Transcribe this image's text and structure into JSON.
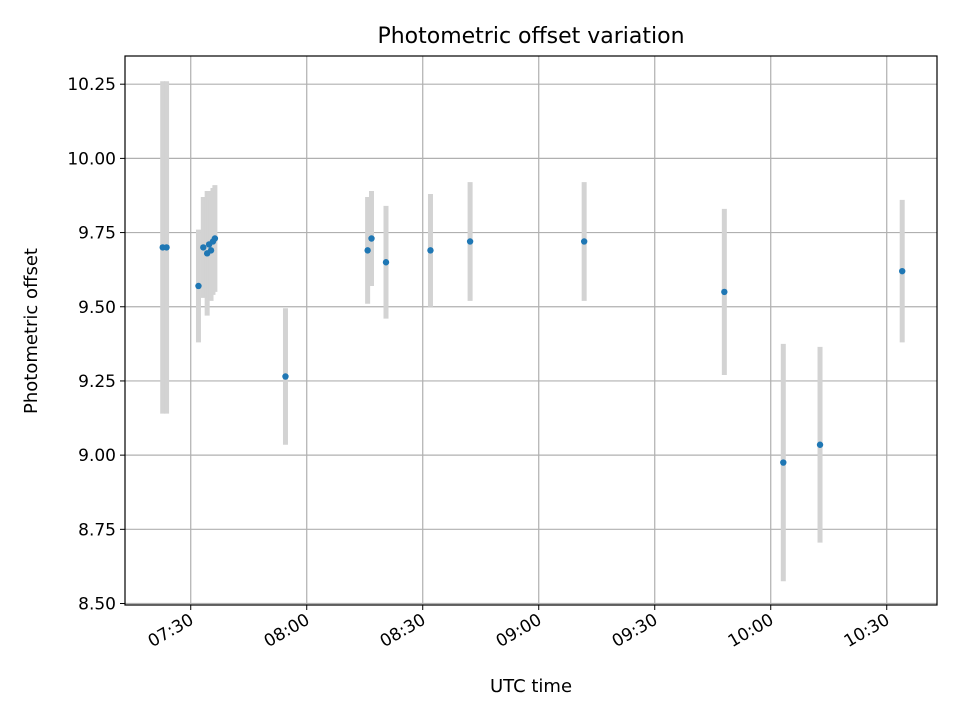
{
  "chart_data": {
    "type": "scatter",
    "title": "Photometric offset variation",
    "xlabel": "UTC time",
    "ylabel": "Photometric offset",
    "xlim": [
      "07:13",
      "10:43"
    ],
    "ylim": [
      8.495,
      10.345
    ],
    "x_ticks": [
      "07:30",
      "08:00",
      "08:30",
      "09:00",
      "09:30",
      "10:00",
      "10:30"
    ],
    "y_ticks": [
      "8.50",
      "8.75",
      "9.00",
      "9.25",
      "9.50",
      "9.75",
      "10.00",
      "10.25"
    ],
    "grid": true,
    "point_color": "#1f77b4",
    "errorbar_color": "#d3d3d3",
    "points": [
      {
        "x": "07:22:45",
        "y": 9.7,
        "yerr": 0.56
      },
      {
        "x": "07:23:45",
        "y": 9.7,
        "yerr": 0.56
      },
      {
        "x": "07:32:00",
        "y": 9.57,
        "yerr": 0.19
      },
      {
        "x": "07:33:15",
        "y": 9.7,
        "yerr": 0.17
      },
      {
        "x": "07:34:15",
        "y": 9.68,
        "yerr": 0.21
      },
      {
        "x": "07:34:45",
        "y": 9.71,
        "yerr": 0.18
      },
      {
        "x": "07:35:15",
        "y": 9.69,
        "yerr": 0.17
      },
      {
        "x": "07:35:45",
        "y": 9.72,
        "yerr": 0.18
      },
      {
        "x": "07:36:15",
        "y": 9.73,
        "yerr": 0.18
      },
      {
        "x": "07:54:30",
        "y": 9.265,
        "yerr": 0.23
      },
      {
        "x": "08:15:45",
        "y": 9.69,
        "yerr": 0.18
      },
      {
        "x": "08:16:45",
        "y": 9.73,
        "yerr": 0.16
      },
      {
        "x": "08:20:30",
        "y": 9.65,
        "yerr": 0.19
      },
      {
        "x": "08:32:00",
        "y": 9.69,
        "yerr": 0.19
      },
      {
        "x": "08:42:15",
        "y": 9.72,
        "yerr": 0.2
      },
      {
        "x": "09:11:45",
        "y": 9.72,
        "yerr": 0.2
      },
      {
        "x": "09:48:00",
        "y": 9.55,
        "yerr": 0.28
      },
      {
        "x": "10:03:15",
        "y": 8.975,
        "yerr": 0.4
      },
      {
        "x": "10:12:45",
        "y": 9.035,
        "yerr": 0.33
      },
      {
        "x": "10:34:00",
        "y": 9.62,
        "yerr": 0.24
      }
    ]
  }
}
